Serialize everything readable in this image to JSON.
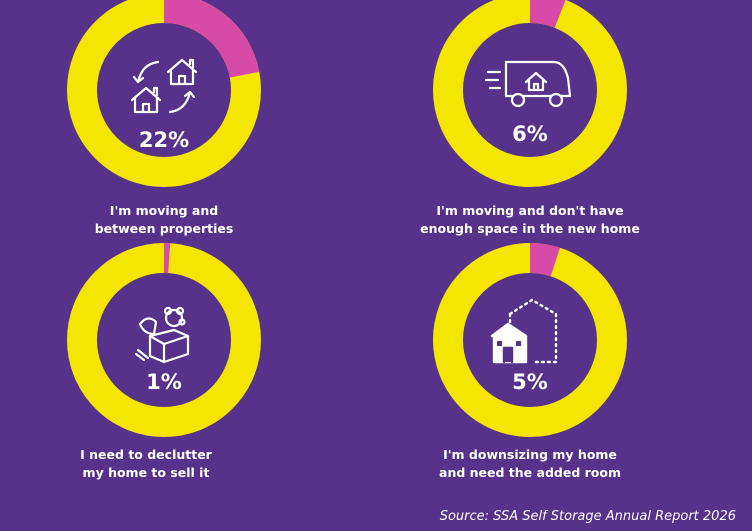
{
  "colors": {
    "background": "#57318a",
    "ring": "#f4e600",
    "highlight": "#d84aa7",
    "text": "#ffffff"
  },
  "chart_data": [
    {
      "type": "pie",
      "style": "donut",
      "value": 22,
      "label": "22%",
      "caption": [
        "I'm moving and",
        "between properties"
      ],
      "icon": "houses-swap-icon"
    },
    {
      "type": "pie",
      "style": "donut",
      "value": 6,
      "label": "6%",
      "caption": [
        "I'm moving and don't have",
        "enough space in the new home"
      ],
      "icon": "moving-van-icon"
    },
    {
      "type": "pie",
      "style": "donut",
      "value": 1,
      "label": "1%",
      "caption": [
        "I need to declutter",
        "my home to sell it"
      ],
      "icon": "toy-box-icon"
    },
    {
      "type": "pie",
      "style": "donut",
      "value": 5,
      "label": "5%",
      "caption": [
        "I'm downsizing my home",
        "and need the added room"
      ],
      "icon": "downsizing-house-icon"
    }
  ],
  "source": "Source: SSA Self Storage Annual Report 2026"
}
